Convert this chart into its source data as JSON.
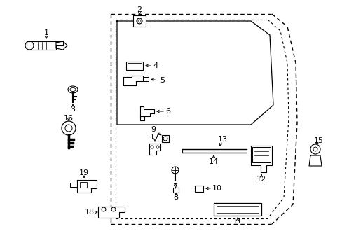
{
  "background_color": "#ffffff",
  "figsize": [
    4.89,
    3.6
  ],
  "dpi": 100,
  "door": {
    "outer_x": [
      155,
      390,
      415,
      425,
      420,
      390,
      155
    ],
    "outer_y": [
      18,
      18,
      42,
      160,
      290,
      318,
      318
    ],
    "inner_x": [
      162,
      383,
      406,
      414,
      410,
      383,
      162
    ],
    "inner_y": [
      26,
      26,
      46,
      160,
      284,
      310,
      310
    ]
  },
  "window": {
    "pts_x": [
      163,
      360,
      390,
      395,
      360,
      163
    ],
    "pts_y": [
      28,
      28,
      50,
      148,
      175,
      175
    ]
  }
}
